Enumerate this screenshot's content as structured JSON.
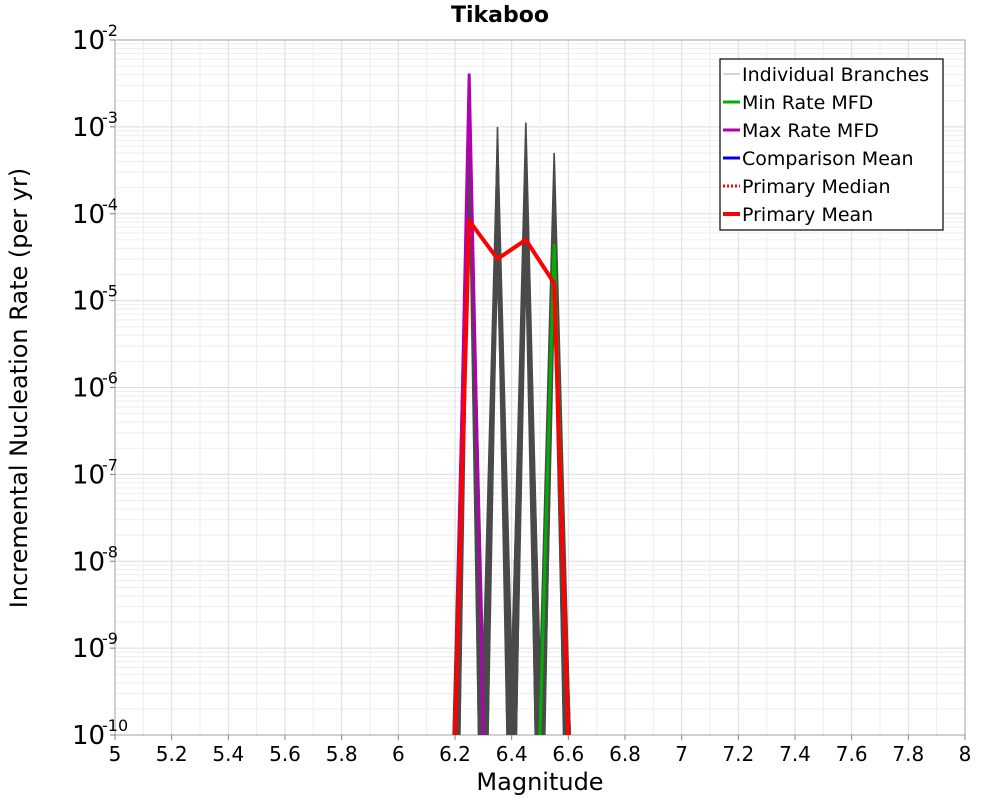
{
  "chart_data": {
    "type": "line",
    "title": "Tikaboo",
    "xlabel": "Magnitude",
    "ylabel": "Incremental Nucleation Rate (per yr)",
    "xlim": [
      5.0,
      8.0
    ],
    "ylim_log10": [
      -10,
      -2
    ],
    "x_ticks": [
      "5",
      "5.2",
      "5.4",
      "5.6",
      "5.8",
      "6",
      "6.2",
      "6.4",
      "6.6",
      "6.8",
      "7",
      "7.2",
      "7.4",
      "7.6",
      "7.8",
      "8"
    ],
    "y_ticks": [
      {
        "base": "10",
        "exp": "-2"
      },
      {
        "base": "10",
        "exp": "-3"
      },
      {
        "base": "10",
        "exp": "-4"
      },
      {
        "base": "10",
        "exp": "-5"
      },
      {
        "base": "10",
        "exp": "-6"
      },
      {
        "base": "10",
        "exp": "-7"
      },
      {
        "base": "10",
        "exp": "-8"
      },
      {
        "base": "10",
        "exp": "-9"
      },
      {
        "base": "10",
        "exp": "-10"
      }
    ],
    "grid": true,
    "legend_position": "top-right",
    "legend": [
      {
        "label": "Individual Branches",
        "color": "#c8c8c8",
        "style": "thin"
      },
      {
        "label": "Min Rate MFD",
        "color": "#00b000",
        "style": "solid"
      },
      {
        "label": "Max Rate MFD",
        "color": "#b000b0",
        "style": "solid"
      },
      {
        "label": "Comparison Mean",
        "color": "#0000e0",
        "style": "solid"
      },
      {
        "label": " Primary Median",
        "color": "#ff0000",
        "style": "dotted"
      },
      {
        "label": "Primary Mean",
        "color": "#ff0000",
        "style": "thick"
      }
    ],
    "series": [
      {
        "name": "Individual Branches",
        "color": "#4a4a4a",
        "note": "many near-identical spiky branch curves",
        "spikes": [
          {
            "x": 6.35,
            "y_log10_range": [
              -3.0,
              -4.6
            ]
          },
          {
            "x": 6.45,
            "y_log10_range": [
              -2.95,
              -4.6
            ]
          },
          {
            "x": 6.55,
            "y_log10_range": [
              -3.3,
              -5.0
            ]
          },
          {
            "x": 6.25,
            "y_log10_range": [
              -2.4,
              -3.6
            ]
          }
        ]
      },
      {
        "name": "Min Rate MFD",
        "color": "#00b000",
        "x": [
          6.5,
          6.55,
          6.6
        ],
        "y_log10": [
          -10.0,
          -4.36,
          -10.0
        ]
      },
      {
        "name": "Max Rate MFD",
        "color": "#b000b0",
        "x": [
          6.2,
          6.25,
          6.3
        ],
        "y_log10": [
          -10.0,
          -2.4,
          -10.0
        ]
      },
      {
        "name": "Primary Mean",
        "color": "#ff0000",
        "x": [
          6.2,
          6.25,
          6.35,
          6.45,
          6.55,
          6.6
        ],
        "y_log10": [
          -10.0,
          -4.08,
          -4.52,
          -4.3,
          -4.8,
          -10.0
        ]
      }
    ]
  }
}
